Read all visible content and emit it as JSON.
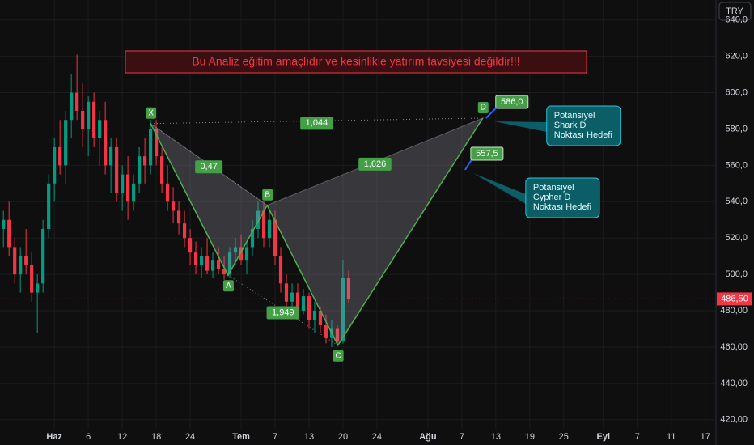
{
  "chart_data": {
    "type": "candlestick",
    "banner": "Bu Analiz eğitim amaçlıdır ve kesinlikle yatırım tavsiyesi değildir!!!",
    "currency": "TRY",
    "xlim": [
      -9.6,
      116.9
    ],
    "ylim": [
      415,
      651
    ],
    "xticks": [
      {
        "value": 0,
        "label": "Haz"
      },
      6,
      12,
      18,
      24,
      {
        "value": 33,
        "label": "Tem"
      },
      {
        "value": 39,
        "label": "7"
      },
      {
        "value": 45,
        "label": "13"
      },
      {
        "value": 51,
        "label": "20"
      },
      {
        "value": 57,
        "label": "24"
      },
      {
        "value": 66,
        "label": "Ağu"
      },
      {
        "value": 72,
        "label": "7"
      },
      {
        "value": 78,
        "label": "13"
      },
      {
        "value": 84,
        "label": "19"
      },
      {
        "value": 90,
        "label": "25"
      },
      {
        "value": 97,
        "label": "Eyl"
      },
      {
        "value": 103,
        "label": "7"
      },
      {
        "value": 109,
        "label": "11"
      },
      {
        "value": 115,
        "label": "17"
      }
    ],
    "yticks": [
      {
        "value": 640,
        "label": "640,0"
      },
      {
        "value": 620,
        "label": "620,0"
      },
      {
        "value": 600,
        "label": "600,0"
      },
      {
        "value": 580,
        "label": "580,0"
      },
      {
        "value": 560,
        "label": "560,0"
      },
      {
        "value": 540,
        "label": "540,0"
      },
      {
        "value": 520,
        "label": "520,0"
      },
      {
        "value": 500,
        "label": "500,0"
      },
      {
        "value": 480,
        "label": "480,00"
      },
      {
        "value": 460,
        "label": "460,00"
      },
      {
        "value": 440,
        "label": "440,00"
      },
      {
        "value": 420,
        "label": "420,00"
      }
    ],
    "grid": true,
    "up_color": "#089981",
    "down_color": "#f23645",
    "candles": {
      "x": [
        -9,
        -8,
        -7,
        -6,
        -5,
        -4,
        -3,
        -2,
        -1,
        0,
        1,
        2,
        3,
        4,
        5,
        6,
        7,
        8,
        9,
        10,
        11,
        12,
        13,
        14,
        15,
        16,
        17,
        18,
        19,
        20,
        21,
        22,
        23,
        24,
        25,
        26,
        27,
        28,
        29,
        30,
        31,
        32,
        33,
        34,
        35,
        36,
        37,
        38,
        39,
        40,
        41,
        42,
        43,
        44,
        45,
        46,
        47,
        48,
        49,
        50,
        51,
        52
      ],
      "open": [
        525,
        530,
        515,
        500,
        510,
        505,
        490,
        495,
        525,
        550,
        570,
        560,
        585,
        600,
        590,
        580,
        595,
        575,
        585,
        560,
        570,
        545,
        555,
        540,
        550,
        565,
        560,
        580,
        565,
        550,
        540,
        535,
        528,
        520,
        512,
        505,
        510,
        502,
        508,
        503,
        500,
        512,
        515,
        508,
        515,
        525,
        535,
        520,
        530,
        510,
        495,
        485,
        490,
        480,
        488,
        475,
        480,
        472,
        465,
        470,
        463,
        498
      ],
      "high": [
        535,
        540,
        520,
        515,
        525,
        512,
        500,
        530,
        555,
        575,
        585,
        590,
        610,
        621,
        605,
        598,
        600,
        590,
        595,
        575,
        575,
        560,
        565,
        555,
        570,
        575,
        585,
        585,
        570,
        560,
        548,
        540,
        535,
        525,
        518,
        515,
        520,
        512,
        515,
        510,
        515,
        520,
        522,
        518,
        530,
        540,
        540,
        535,
        535,
        515,
        500,
        495,
        495,
        492,
        490,
        485,
        482,
        478,
        475,
        472,
        508,
        502
      ],
      "low": [
        515,
        510,
        495,
        490,
        500,
        485,
        468,
        490,
        520,
        540,
        555,
        550,
        575,
        585,
        570,
        565,
        570,
        560,
        555,
        545,
        540,
        535,
        530,
        535,
        545,
        550,
        555,
        560,
        545,
        535,
        528,
        522,
        515,
        505,
        500,
        498,
        500,
        498,
        500,
        497,
        498,
        505,
        505,
        500,
        510,
        520,
        515,
        515,
        505,
        490,
        480,
        478,
        475,
        478,
        470,
        468,
        468,
        462,
        460,
        461,
        462,
        484
      ],
      "close": [
        530,
        515,
        500,
        510,
        505,
        490,
        495,
        525,
        550,
        570,
        560,
        585,
        600,
        590,
        580,
        595,
        575,
        585,
        560,
        570,
        545,
        555,
        540,
        550,
        565,
        560,
        580,
        565,
        550,
        540,
        535,
        528,
        520,
        512,
        505,
        510,
        502,
        508,
        503,
        500,
        512,
        515,
        508,
        515,
        525,
        535,
        520,
        530,
        510,
        495,
        485,
        490,
        480,
        488,
        475,
        480,
        472,
        465,
        470,
        463,
        498,
        486.5
      ]
    },
    "last_price": {
      "value": 486.5,
      "label": "486,50"
    },
    "pattern": {
      "points": [
        {
          "label": "X",
          "x": 17,
          "y": 583
        },
        {
          "label": "A",
          "x": 30.7,
          "y": 499.5
        },
        {
          "label": "B",
          "x": 37.6,
          "y": 538
        },
        {
          "label": "C",
          "x": 50.1,
          "y": 461
        },
        {
          "label": "D",
          "x": 75.7,
          "y": 586
        }
      ],
      "ratios": [
        "0,47",
        "1,044",
        "1,626",
        "1,949"
      ]
    },
    "targets": [
      {
        "value": 586,
        "label": "586,0",
        "x": 75.7,
        "note": [
          "Potansiyel",
          "Shark D",
          "Noktası Hedefi"
        ]
      },
      {
        "value": 557.5,
        "label": "557,5",
        "x": 72,
        "note": [
          "Potansiyel",
          "Cypher D",
          "Noktası Hedefi"
        ]
      }
    ]
  }
}
